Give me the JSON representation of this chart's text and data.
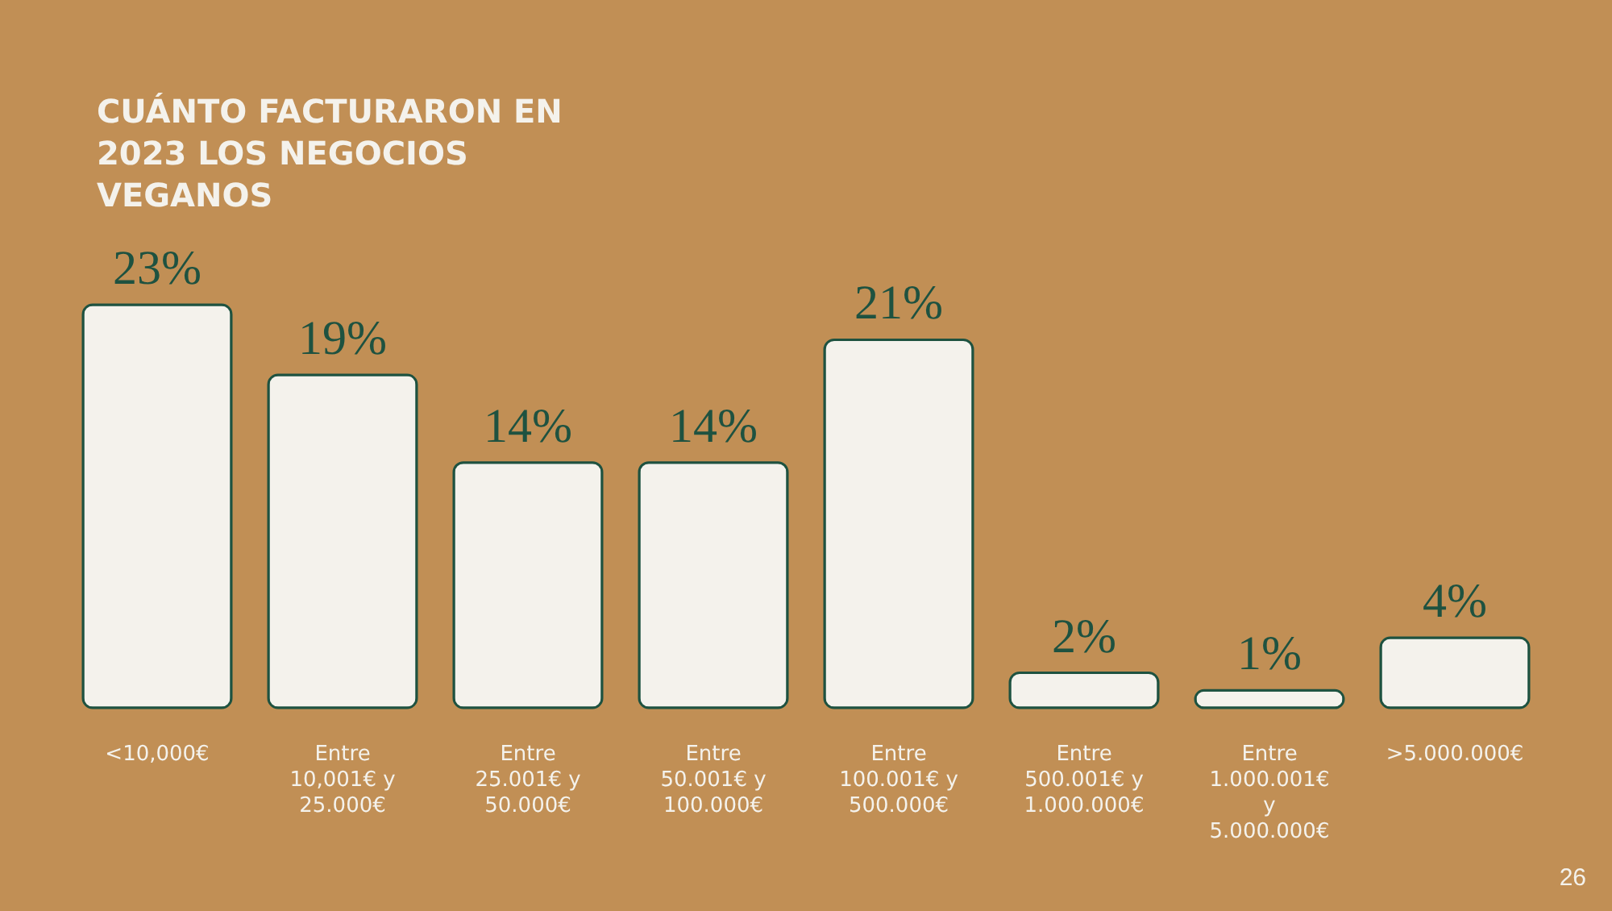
{
  "chart_data": {
    "type": "bar",
    "title": "CUÁNTO FACTURARON EN 2023 LOS NEGOCIOS VEGANOS",
    "categories": [
      "<10,000€",
      "Entre 10,001€ y 25.000€",
      "Entre 25.001€ y 50.000€",
      "Entre 50.001€ y 100.000€",
      "Entre 100.001€ y 500.000€",
      "Entre 500.001€ y 1.000.000€",
      "Entre 1.000.001€ y 5.000.000€",
      ">5.000.000€"
    ],
    "values": [
      23,
      19,
      14,
      14,
      21,
      2,
      1,
      4
    ],
    "value_labels": [
      "23%",
      "19%",
      "14%",
      "14%",
      "21%",
      "2%",
      "1%",
      "4%"
    ],
    "color": "#f4f2ec",
    "annotations": [
      "26"
    ]
  }
}
